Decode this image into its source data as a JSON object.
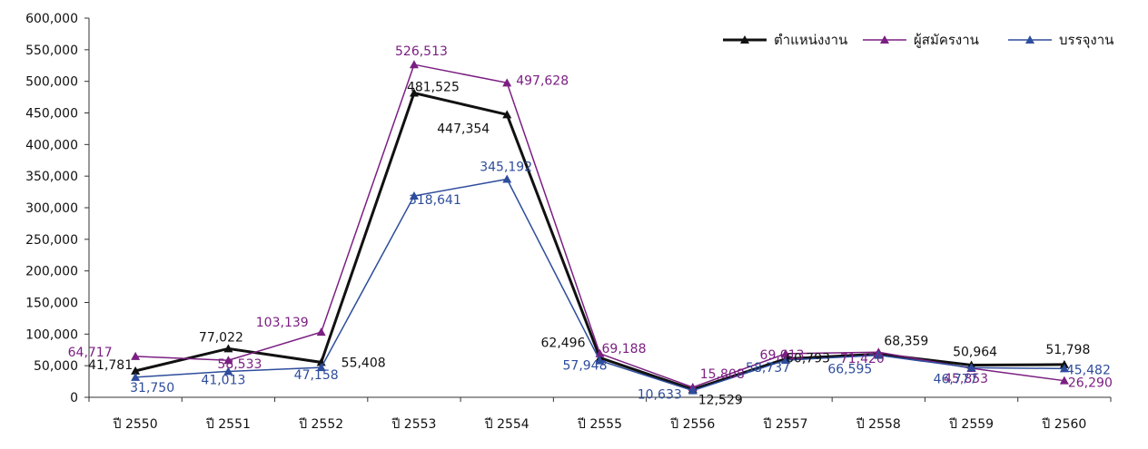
{
  "chart_data": {
    "type": "line",
    "categories": [
      "ปี 2550",
      "ปี 2551",
      "ปี 2552",
      "ปี 2553",
      "ปี 2554",
      "ปี 2555",
      "ปี 2556",
      "ปี 2557",
      "ปี 2558",
      "ปี 2559",
      "ปี 2560"
    ],
    "y_ticks": [
      "0",
      "50,000",
      "100,000",
      "150,000",
      "200,000",
      "250,000",
      "300,000",
      "350,000",
      "400,000",
      "450,000",
      "500,000",
      "550,000",
      "600,000"
    ],
    "ylim": [
      0,
      600000
    ],
    "grid": false,
    "legend_position": "top-right",
    "series": [
      {
        "name": "ตำแหน่งงาน",
        "color": "#111111",
        "values": [
          41781,
          77022,
          55408,
          481525,
          447354,
          62496,
          12529,
          60793,
          68359,
          50964,
          51798
        ],
        "labels": [
          "41,781",
          "77,022",
          "55,408",
          "481,525",
          "447,354",
          "62,496",
          "12,529",
          "60,793",
          "68,359",
          "50,964",
          "51,798"
        ]
      },
      {
        "name": "ผู้สมัครงาน",
        "color": "#7b1f82",
        "values": [
          64717,
          58533,
          103139,
          526513,
          497628,
          69188,
          15808,
          69013,
          71420,
          45853,
          26290
        ],
        "labels": [
          "64,717",
          "58,533",
          "103,139",
          "526,513",
          "497,628",
          "69,188",
          "15,808",
          "69,013",
          "71,420",
          "45,853",
          "26,290"
        ]
      },
      {
        "name": "บรรจุงาน",
        "color": "#2e4d9c",
        "values": [
          31750,
          41013,
          47158,
          318641,
          345192,
          57948,
          10633,
          58737,
          66595,
          46777,
          45482
        ],
        "labels": [
          "31,750",
          "41,013",
          "47,158",
          "318,641",
          "345,192",
          "57,948",
          "10,633",
          "58,737",
          "66,595",
          "46,777",
          "45,482"
        ]
      }
    ]
  }
}
